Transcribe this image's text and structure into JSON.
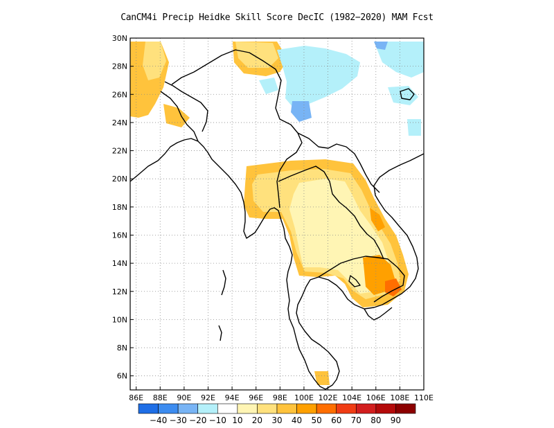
{
  "title": "CanCM4i Precip Heidke Skill Score DecIC (1982−2020) MAM Fcst",
  "map": {
    "lon_range": [
      85.5,
      110
    ],
    "lat_range": [
      5,
      30
    ],
    "x_ticks": [
      "86E",
      "88E",
      "90E",
      "92E",
      "94E",
      "96E",
      "98E",
      "100E",
      "102E",
      "104E",
      "106E",
      "108E",
      "110E"
    ],
    "y_ticks": [
      "30N",
      "28N",
      "26N",
      "24N",
      "22N",
      "20N",
      "18N",
      "16N",
      "14N",
      "12N",
      "10N",
      "8N",
      "6N"
    ],
    "gridlines": "dotted"
  },
  "colorbar": {
    "labels": [
      "−40",
      "−30",
      "−20",
      "−10",
      "10",
      "20",
      "30",
      "40",
      "50",
      "60",
      "70",
      "80",
      "90"
    ],
    "colors": [
      "#1e6ee6",
      "#3c8cf0",
      "#78b4f5",
      "#b4f0fa",
      "#ffffff",
      "#fff5b4",
      "#ffe17d",
      "#ffc33c",
      "#ffa000",
      "#ff6e00",
      "#f03c14",
      "#d21e1e",
      "#b40a0a",
      "#8c0000"
    ]
  },
  "regions": [
    {
      "name": "positive-skill-30-40-core",
      "color": "#ffc33c"
    },
    {
      "name": "positive-skill-20-30-halo",
      "color": "#ffe17d"
    },
    {
      "name": "positive-skill-10-20",
      "color": "#fff5b4"
    },
    {
      "name": "negative-skill-10-20",
      "color": "#b4f0fa"
    },
    {
      "name": "negative-skill-20-30",
      "color": "#78b4f5"
    },
    {
      "name": "positive-skill-40-50",
      "color": "#ffa000"
    },
    {
      "name": "positive-skill-50-60",
      "color": "#ff6e00"
    }
  ]
}
